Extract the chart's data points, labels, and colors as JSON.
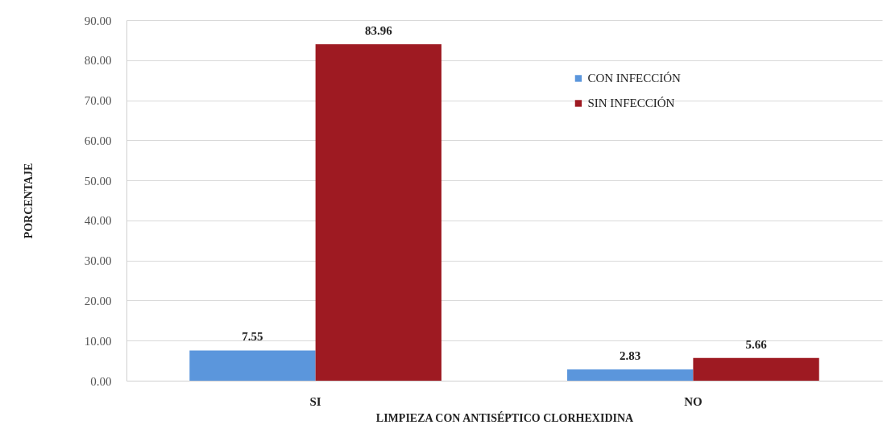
{
  "chart_data": {
    "type": "bar",
    "xlabel": "LIMPIEZA CON ANTISÉPTICO CLORHEXIDINA",
    "ylabel": "PORCENTAJE",
    "categories": [
      "SI",
      "NO"
    ],
    "series": [
      {
        "name": "CON INFECCIÓN",
        "color": "#5b96dc",
        "values": [
          7.55,
          2.83
        ]
      },
      {
        "name": "SIN INFECCIÓN",
        "color": "#9e1a22",
        "values": [
          83.96,
          5.66
        ]
      }
    ],
    "ylim": [
      0,
      90
    ],
    "yticks": [
      {
        "value": 0,
        "label": "0.00"
      },
      {
        "value": 10,
        "label": "10.00"
      },
      {
        "value": 20,
        "label": "20.00"
      },
      {
        "value": 30,
        "label": "30.00"
      },
      {
        "value": 40,
        "label": "40.00"
      },
      {
        "value": 50,
        "label": "50.00"
      },
      {
        "value": 60,
        "label": "60.00"
      },
      {
        "value": 70,
        "label": "70.00"
      },
      {
        "value": 80,
        "label": "80.00"
      },
      {
        "value": 90,
        "label": "90.00"
      }
    ],
    "data_labels": true,
    "grid": "y",
    "legend": "top right"
  }
}
